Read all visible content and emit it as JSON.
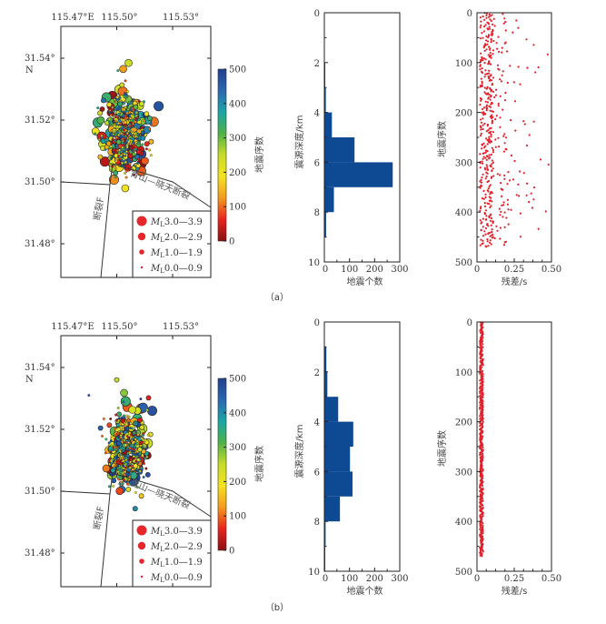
{
  "figure": {
    "panels": [
      {
        "id": "a",
        "label": "（a）"
      },
      {
        "id": "b",
        "label": "（b）"
      }
    ]
  },
  "chart_data": [
    {
      "panel": "a",
      "type": "scatter",
      "subtype": "epicenter-map",
      "xlabel_ticks": [
        "115.47°E",
        "115.50°",
        "115.53°"
      ],
      "x_tick_values": [
        115.47,
        115.5,
        115.53
      ],
      "ylabel_ticks": [
        "31.54°",
        "31.52°",
        "31.50°",
        "31.48°"
      ],
      "y_tick_values": [
        31.54,
        31.52,
        31.5,
        31.48
      ],
      "y_axis_unit_label": "N",
      "xlim": [
        115.47,
        115.524
      ],
      "ylim": [
        31.47,
        31.551
      ],
      "colorbar": {
        "label": "地震序数",
        "ticks": [
          0,
          100,
          200,
          300,
          400,
          500
        ],
        "range": [
          0,
          500
        ],
        "colors": [
          "#8b0f12",
          "#e8231d",
          "#f39a1d",
          "#f4e321",
          "#c8dd27",
          "#4fb24a",
          "#1aa6a6",
          "#2b67b2",
          "#213f8c"
        ]
      },
      "faults": [
        {
          "name": "断裂F",
          "label": "断裂F"
        },
        {
          "name": "青山—晓天断裂",
          "label": "青山—晓天断裂"
        }
      ],
      "legend": [
        {
          "label_prefix": "M",
          "label_sub": "L",
          "label_range": "3.0—3.9",
          "size": "large"
        },
        {
          "label_prefix": "M",
          "label_sub": "L",
          "label_range": "2.0—2.9",
          "size": "medium"
        },
        {
          "label_prefix": "M",
          "label_sub": "L",
          "label_range": "1.0—1.9",
          "size": "small"
        },
        {
          "label_prefix": "M",
          "label_sub": "L",
          "label_range": "0.0—0.9",
          "size": "tiny"
        }
      ],
      "legend_placement": "bottom-right",
      "point_count": 470,
      "cluster_center": [
        115.5045,
        31.516
      ],
      "cluster_spread": [
        0.0045,
        0.0055
      ]
    },
    {
      "panel": "a",
      "type": "bar",
      "orientation": "horizontal",
      "title": "",
      "xlabel": "地震个数",
      "ylabel": "震源深度/km",
      "xlim": [
        0,
        300
      ],
      "ylim": [
        0,
        10
      ],
      "x_ticks": [
        "0",
        "100",
        "200",
        "300"
      ],
      "y_ticks": [
        "0",
        "2",
        "4",
        "6",
        "8",
        "10"
      ],
      "bins": [
        [
          0,
          1
        ],
        [
          1,
          2
        ],
        [
          2,
          3
        ],
        [
          3,
          4
        ],
        [
          4,
          5
        ],
        [
          5,
          6
        ],
        [
          6,
          7
        ],
        [
          7,
          8
        ],
        [
          8,
          9
        ],
        [
          9,
          10
        ]
      ],
      "values": [
        0,
        0,
        2,
        6,
        30,
        120,
        272,
        38,
        7,
        0
      ],
      "color": "#0e4a94"
    },
    {
      "panel": "a",
      "type": "scatter",
      "title": "",
      "xlabel": "残差/s",
      "ylabel": "地震序数",
      "xlim": [
        0,
        0.5
      ],
      "ylim": [
        0,
        500
      ],
      "x_ticks": [
        "0",
        "0.25",
        "0.50"
      ],
      "y_ticks": [
        "0",
        "100",
        "200",
        "300",
        "400",
        "500"
      ],
      "point_count": 470,
      "residual_distribution": "mostly 0.02–0.12 s, scattered up to ~0.48 s",
      "residual_max": 0.48,
      "color": "#e0202a"
    },
    {
      "panel": "b",
      "type": "scatter",
      "subtype": "epicenter-map",
      "xlabel_ticks": [
        "115.47°E",
        "115.50°",
        "115.53°"
      ],
      "x_tick_values": [
        115.47,
        115.5,
        115.53
      ],
      "ylabel_ticks": [
        "31.54°",
        "31.52°",
        "31.50°",
        "31.48°"
      ],
      "y_tick_values": [
        31.54,
        31.52,
        31.5,
        31.48
      ],
      "y_axis_unit_label": "N",
      "xlim": [
        115.47,
        115.524
      ],
      "ylim": [
        31.47,
        31.551
      ],
      "colorbar": {
        "label": "地震序数",
        "ticks": [
          0,
          100,
          200,
          300,
          400,
          500
        ],
        "range": [
          0,
          500
        ],
        "colors": [
          "#8b0f12",
          "#e8231d",
          "#f39a1d",
          "#f4e321",
          "#c8dd27",
          "#4fb24a",
          "#1aa6a6",
          "#2b67b2",
          "#213f8c"
        ]
      },
      "faults": [
        {
          "name": "断裂F",
          "label": "断裂F"
        },
        {
          "name": "青山—晓天断裂",
          "label": "青山—晓天断裂"
        }
      ],
      "legend": [
        {
          "label_prefix": "M",
          "label_sub": "L",
          "label_range": "3.0—3.9",
          "size": "large"
        },
        {
          "label_prefix": "M",
          "label_sub": "L",
          "label_range": "2.0—2.9",
          "size": "medium"
        },
        {
          "label_prefix": "M",
          "label_sub": "L",
          "label_range": "1.0—1.9",
          "size": "small"
        },
        {
          "label_prefix": "M",
          "label_sub": "L",
          "label_range": "0.0—0.9",
          "size": "tiny"
        }
      ],
      "legend_placement": "bottom-right",
      "point_count": 470,
      "cluster_center": [
        115.5055,
        31.5135
      ],
      "cluster_spread": [
        0.004,
        0.005
      ]
    },
    {
      "panel": "b",
      "type": "bar",
      "orientation": "horizontal",
      "title": "",
      "xlabel": "地震个数",
      "ylabel": "震源深度/km",
      "xlim": [
        0,
        300
      ],
      "ylim": [
        0,
        10
      ],
      "x_ticks": [
        "0",
        "100",
        "200",
        "300"
      ],
      "y_ticks": [
        "0",
        "2",
        "4",
        "6",
        "8",
        "10"
      ],
      "bins": [
        [
          0,
          1
        ],
        [
          1,
          2
        ],
        [
          2,
          3
        ],
        [
          3,
          4
        ],
        [
          4,
          5
        ],
        [
          5,
          6
        ],
        [
          6,
          7
        ],
        [
          7,
          8
        ],
        [
          8,
          9
        ],
        [
          9,
          10
        ]
      ],
      "values": [
        0,
        8,
        12,
        55,
        115,
        102,
        112,
        62,
        5,
        3
      ],
      "color": "#0e4a94"
    },
    {
      "panel": "b",
      "type": "scatter",
      "title": "",
      "xlabel": "残差/s",
      "ylabel": "地震序数",
      "xlim": [
        0,
        0.5
      ],
      "ylim": [
        0,
        500
      ],
      "x_ticks": [
        "0",
        "0.25",
        "0.50"
      ],
      "y_ticks": [
        "0",
        "100",
        "200",
        "300",
        "400",
        "500"
      ],
      "point_count": 470,
      "residual_distribution": "tightly clustered 0.015–0.045 s",
      "residual_max": 0.05,
      "color": "#e0202a"
    }
  ]
}
